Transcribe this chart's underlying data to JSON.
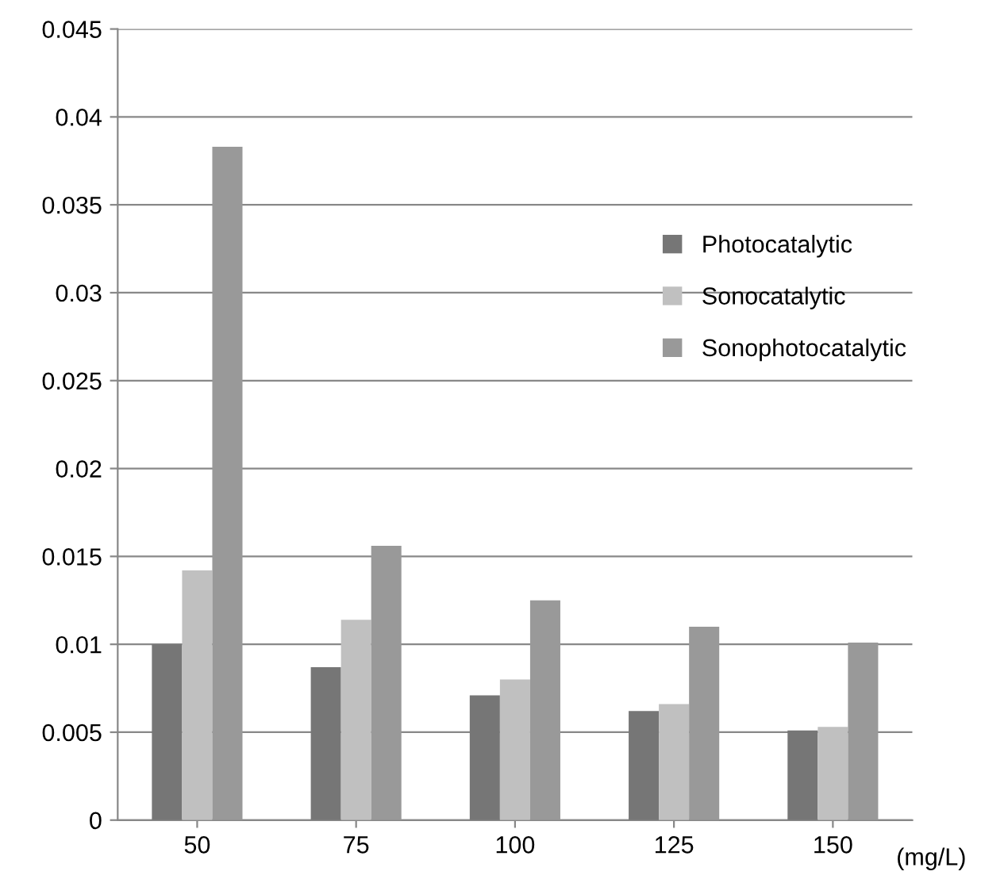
{
  "chart_data": {
    "type": "bar",
    "categories": [
      "50",
      "75",
      "100",
      "125",
      "150"
    ],
    "series": [
      {
        "name": "Photocatalytic",
        "color": "#767676",
        "values": [
          0.01,
          0.0087,
          0.0071,
          0.0062,
          0.0051
        ]
      },
      {
        "name": "Sonocatalytic",
        "color": "#c0c0c0",
        "values": [
          0.0142,
          0.0114,
          0.008,
          0.0066,
          0.0053
        ]
      },
      {
        "name": "Sonophotocatalytic",
        "color": "#999999",
        "values": [
          0.0383,
          0.0156,
          0.0125,
          0.011,
          0.0101
        ]
      }
    ],
    "xlabel": "(mg/L)",
    "ylim": [
      0,
      0.045
    ],
    "yticks": [
      0,
      0.005,
      0.01,
      0.015,
      0.02,
      0.025,
      0.03,
      0.035,
      0.04,
      0.045
    ],
    "grid": "y",
    "legend": "right"
  }
}
